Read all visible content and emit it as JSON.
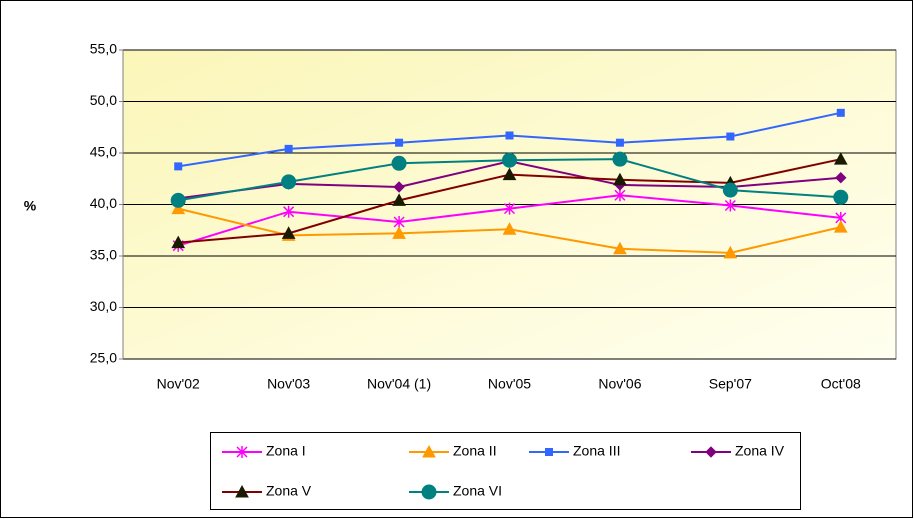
{
  "chart_data": {
    "type": "line",
    "y_label": "%",
    "categories": [
      "Nov'02",
      "Nov'03",
      "Nov'04 (1)",
      "Nov'05",
      "Nov'06",
      "Sep'07",
      "Oct'08"
    ],
    "ylim": [
      25,
      55
    ],
    "yticks": [
      {
        "value": 25,
        "label": "25,0"
      },
      {
        "value": 30,
        "label": "30,0"
      },
      {
        "value": 35,
        "label": "35,0"
      },
      {
        "value": 40,
        "label": "40,0"
      },
      {
        "value": 45,
        "label": "45,0"
      },
      {
        "value": 50,
        "label": "50,0"
      },
      {
        "value": 55,
        "label": "55,0"
      }
    ],
    "grid": true,
    "legend": "bottom",
    "series": [
      {
        "name": "Zona I",
        "color": "#ff00ff",
        "marker": "star",
        "values": [
          36.0,
          39.3,
          38.3,
          39.6,
          40.9,
          39.9,
          38.7
        ]
      },
      {
        "name": "Zona II",
        "color": "#ff9900",
        "marker": "triangle",
        "values": [
          39.6,
          37.0,
          37.2,
          37.6,
          35.7,
          35.3,
          37.8
        ]
      },
      {
        "name": "Zona III",
        "color": "#3366ff",
        "marker": "square",
        "values": [
          43.7,
          45.4,
          46.0,
          46.7,
          46.0,
          46.6,
          48.9
        ]
      },
      {
        "name": "Zona IV",
        "color": "#800080",
        "marker": "diamond",
        "values": [
          40.6,
          42.0,
          41.7,
          44.2,
          41.9,
          41.7,
          42.6
        ]
      },
      {
        "name": "Zona V",
        "color": "#800000",
        "marker_color": "#1a1a00",
        "marker": "triangle",
        "values": [
          36.3,
          37.2,
          40.4,
          42.9,
          42.4,
          42.1,
          44.4
        ]
      },
      {
        "name": "Zona VI",
        "color": "#008080",
        "marker": "circle",
        "values": [
          40.4,
          42.2,
          44.0,
          44.3,
          44.4,
          41.4,
          40.7
        ]
      }
    ]
  }
}
